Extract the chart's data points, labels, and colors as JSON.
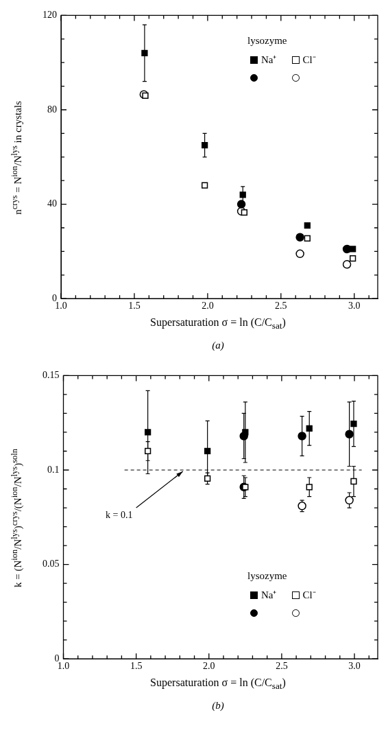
{
  "chart_data": [
    {
      "type": "scatter",
      "xlabel": "Supersaturation σ = ln (C/C$_{sat}$)",
      "ylabel": "n$^{crys}$ = N$^{ion}$/N$^{lys}$ in crystals",
      "legend_title": "lysozyme",
      "legend": "top right",
      "annotations": [
        "(a)"
      ],
      "xlim": [
        1.0,
        3.16
      ],
      "xticks": [
        {
          "value": 1.0,
          "label": "1.0"
        },
        {
          "value": 1.1,
          "label": null
        },
        {
          "value": 1.2,
          "label": null
        },
        {
          "value": 1.3,
          "label": null
        },
        {
          "value": 1.4,
          "label": null
        },
        {
          "value": 1.5,
          "label": "1.5"
        },
        {
          "value": 1.6,
          "label": null
        },
        {
          "value": 1.7,
          "label": null
        },
        {
          "value": 1.8,
          "label": null
        },
        {
          "value": 1.9,
          "label": null
        },
        {
          "value": 2.0,
          "label": "2.0"
        },
        {
          "value": 2.1,
          "label": null
        },
        {
          "value": 2.2,
          "label": null
        },
        {
          "value": 2.3,
          "label": null
        },
        {
          "value": 2.4,
          "label": null
        },
        {
          "value": 2.5,
          "label": "2.5"
        },
        {
          "value": 2.6,
          "label": null
        },
        {
          "value": 2.7,
          "label": null
        },
        {
          "value": 2.8,
          "label": null
        },
        {
          "value": 2.9,
          "label": null
        },
        {
          "value": 3.0,
          "label": "3.0"
        },
        {
          "value": 3.1,
          "label": null
        }
      ],
      "ylim": [
        0,
        120
      ],
      "yticks": [
        0,
        {
          "value": 10,
          "label": null
        },
        {
          "value": 20,
          "label": null
        },
        {
          "value": 30,
          "label": null
        },
        40,
        {
          "value": 50,
          "label": null
        },
        {
          "value": 60,
          "label": null
        },
        {
          "value": 70,
          "label": null
        },
        80,
        {
          "value": 90,
          "label": null
        },
        {
          "value": 100,
          "label": null
        },
        {
          "value": 110,
          "label": null
        },
        120
      ],
      "series": [
        {
          "name": "Na⁺",
          "color": "#000000",
          "marker": "square",
          "x": [
            1.57,
            1.98,
            2.24,
            2.68,
            2.99
          ],
          "values": [
            104,
            65,
            44,
            31,
            21
          ],
          "errors": [
            12,
            5,
            3.5,
            null,
            null
          ]
        },
        {
          "name": "Cl⁻",
          "color": "#ffffff",
          "marker": "square",
          "x": [
            1.575,
            1.98,
            2.25,
            2.68,
            2.99
          ],
          "values": [
            86,
            48,
            36.5,
            25.5,
            17
          ]
        },
        {
          "color": "#000000",
          "marker": "circle",
          "x": [
            2.23,
            2.63,
            2.95
          ],
          "values": [
            40,
            26,
            21
          ]
        },
        {
          "color": "#ffffff",
          "marker": "circle",
          "x": [
            1.565,
            2.23,
            2.63,
            2.95
          ],
          "values": [
            86.5,
            37,
            19,
            14.5
          ]
        }
      ]
    },
    {
      "type": "scatter",
      "xlabel": "Supersaturation σ = ln (C/C$_{sat}$)",
      "ylabel": "k = (N$^{ion}$/N$^{lys}$)$^{crys}$/(N$^{ion}$/N$^{lys}$)$^{soln}$",
      "legend_title": "lysozyme",
      "legend": "bottom right",
      "annotations": [
        {
          "text": "k = 0.1",
          "x": 1.83,
          "y": 0.1
        },
        "(b)"
      ],
      "xlim": [
        1.0,
        3.16
      ],
      "xticks": [
        {
          "value": 1.0,
          "label": "1.0"
        },
        {
          "value": 1.1,
          "label": null
        },
        {
          "value": 1.2,
          "label": null
        },
        {
          "value": 1.3,
          "label": null
        },
        {
          "value": 1.4,
          "label": null
        },
        {
          "value": 1.5,
          "label": "1.5"
        },
        {
          "value": 1.6,
          "label": null
        },
        {
          "value": 1.7,
          "label": null
        },
        {
          "value": 1.8,
          "label": null
        },
        {
          "value": 1.9,
          "label": null
        },
        {
          "value": 2.0,
          "label": "2.0"
        },
        {
          "value": 2.1,
          "label": null
        },
        {
          "value": 2.2,
          "label": null
        },
        {
          "value": 2.3,
          "label": null
        },
        {
          "value": 2.4,
          "label": null
        },
        {
          "value": 2.5,
          "label": "2.5"
        },
        {
          "value": 2.6,
          "label": null
        },
        {
          "value": 2.7,
          "label": null
        },
        {
          "value": 2.8,
          "label": null
        },
        {
          "value": 2.9,
          "label": null
        },
        {
          "value": 3.0,
          "label": "3.0"
        },
        {
          "value": 3.1,
          "label": null
        }
      ],
      "ylim": [
        0,
        0.15
      ],
      "yticks": [
        0,
        {
          "value": 0.01,
          "label": null
        },
        {
          "value": 0.02,
          "label": null
        },
        {
          "value": 0.03,
          "label": null
        },
        {
          "value": 0.04,
          "label": null
        },
        0.05,
        {
          "value": 0.06,
          "label": null
        },
        {
          "value": 0.07,
          "label": null
        },
        {
          "value": 0.08,
          "label": null
        },
        {
          "value": 0.09,
          "label": null
        },
        0.1,
        {
          "value": 0.11,
          "label": null
        },
        {
          "value": 0.12,
          "label": null
        },
        {
          "value": 0.13,
          "label": null
        },
        {
          "value": 0.14,
          "label": null
        },
        0.15
      ],
      "series": [
        {
          "name": "Na⁺",
          "color": "#000000",
          "marker": "square",
          "x": [
            1.58,
            1.99,
            2.25,
            2.69,
            2.995
          ],
          "values": [
            0.12,
            0.11,
            0.12,
            0.122,
            0.1245
          ],
          "errors": [
            0.022,
            0.016,
            0.016,
            0.009,
            0.012
          ]
        },
        {
          "name": "Cl⁻",
          "color": "#ffffff",
          "marker": "square",
          "x": [
            1.58,
            1.99,
            2.25,
            2.69,
            2.995
          ],
          "values": [
            0.11,
            0.0955,
            0.091,
            0.091,
            0.094
          ],
          "errors": [
            0.005,
            0.003,
            0.005,
            0.005,
            0.008
          ]
        },
        {
          "color": "#000000",
          "marker": "circle",
          "x": [
            2.24,
            2.24,
            2.64,
            2.965
          ],
          "values": [
            0.118,
            0.091,
            0.118,
            0.119
          ],
          "errors": [
            0.012,
            0.006,
            0.0105,
            0.017
          ]
        },
        {
          "color": "#ffffff",
          "marker": "circle",
          "x": [
            2.64,
            2.965
          ],
          "values": [
            0.081,
            0.084
          ],
          "errors": [
            0.003,
            0.004
          ]
        },
        {
          "type": "line",
          "color": "#000000",
          "marker": "none",
          "line_style": "dashed",
          "x": [
            1.42,
            3.05
          ],
          "values": [
            0.1,
            0.1
          ]
        }
      ]
    }
  ]
}
